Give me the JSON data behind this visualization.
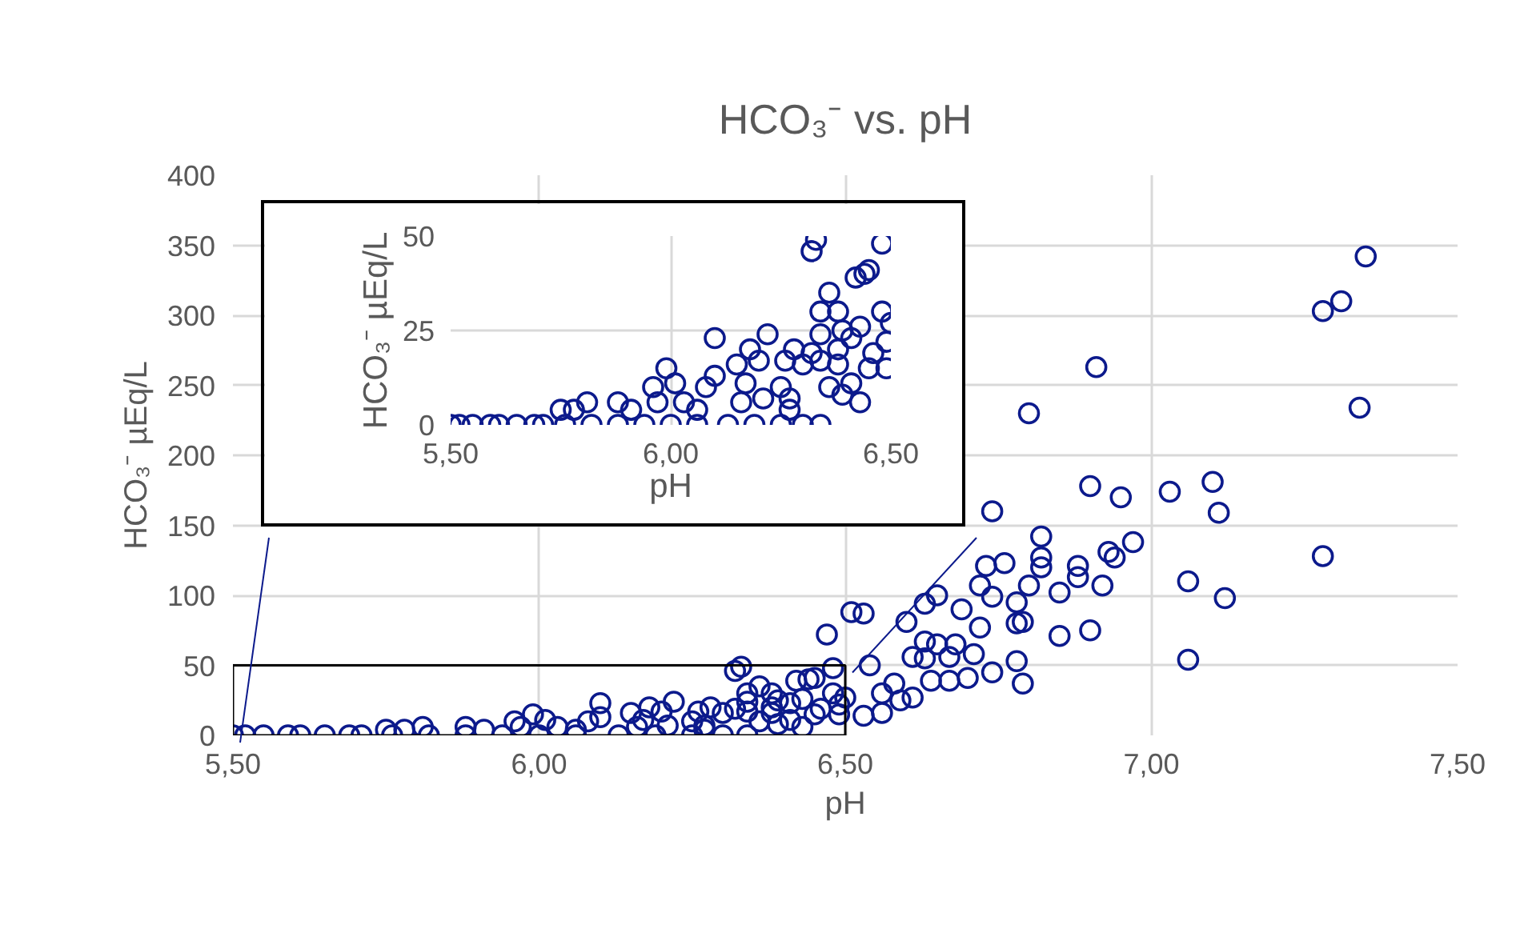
{
  "chart_data": [
    {
      "type": "scatter",
      "title": "HCO₃⁻ vs. pH",
      "xlabel": "pH",
      "ylabel": "HCO₃⁻ µEq/L",
      "marker": "circle",
      "grid": true,
      "xlim": [
        5.5,
        7.5
      ],
      "xticks": [
        {
          "value": 5.5,
          "label": "5,50"
        },
        {
          "value": 6.0,
          "label": "6,00"
        },
        {
          "value": 6.5,
          "label": "6,50"
        },
        {
          "value": 7.0,
          "label": "7,00"
        },
        {
          "value": 7.5,
          "label": "7,50"
        }
      ],
      "ylim": [
        0,
        400
      ],
      "yticks": [
        0,
        50,
        100,
        150,
        200,
        250,
        300,
        350,
        400
      ],
      "series": [
        {
          "color": "#0c1a8c",
          "x": [
            6.33,
            6.32,
            6.48,
            6.42,
            6.44,
            6.45,
            6.36,
            6.34,
            6.38,
            6.48,
            6.5,
            6.43,
            6.39,
            6.34,
            6.41,
            6.49,
            6.46,
            6.38,
            6.32,
            6.34,
            6.38,
            6.49,
            6.45,
            6.43,
            6.39,
            6.36,
            6.41,
            6.34,
            6.22,
            6.1,
            6.18,
            6.2,
            6.26,
            6.28,
            6.3,
            6.15,
            5.99,
            6.1,
            6.17,
            6.27,
            6.25,
            6.08,
            6.01,
            5.96,
            5.97,
            5.88,
            5.81,
            5.75,
            5.78,
            5.91,
            6.03,
            6.06,
            6.16,
            6.21,
            6.27,
            5.5,
            5.52,
            5.55,
            5.59,
            5.61,
            5.65,
            5.69,
            5.71,
            5.76,
            5.82,
            5.88,
            5.94,
            6.0,
            6.06,
            6.13,
            6.19,
            6.25,
            6.3,
            7.35,
            7.31,
            7.28,
            6.91,
            6.8,
            7.34,
            6.9,
            6.95,
            7.03,
            7.1,
            7.11,
            6.74,
            7.28,
            6.97,
            6.82,
            7.06,
            7.12,
            7.06,
            6.9,
            6.85,
            6.93,
            6.94,
            6.88,
            6.88,
            6.92,
            6.85,
            6.82,
            6.82,
            6.8,
            6.76,
            6.73,
            6.72,
            6.74,
            6.78,
            6.78,
            6.79,
            6.65,
            6.63,
            6.6,
            6.69,
            6.72,
            6.68,
            6.65,
            6.63,
            6.61,
            6.63,
            6.67,
            6.71,
            6.78,
            6.79,
            6.74,
            6.7,
            6.67,
            6.64,
            6.61,
            6.59,
            6.56,
            6.56,
            6.53,
            6.51,
            6.53,
            6.47,
            6.54,
            6.58
          ],
          "values": [
            49,
            46,
            48,
            39,
            40,
            41,
            35,
            30,
            30,
            30,
            27,
            26,
            25,
            24,
            23,
            22,
            19,
            20,
            19,
            17,
            16,
            15,
            15,
            6,
            8,
            10,
            11,
            0,
            24,
            23,
            20,
            17,
            17,
            20,
            16,
            16,
            15,
            13,
            11,
            7,
            10,
            10,
            11,
            10,
            6,
            6,
            6,
            4,
            4,
            4,
            6,
            4,
            6,
            7,
            4,
            0,
            0,
            0,
            0,
            0,
            0,
            0,
            0,
            0,
            0,
            0,
            0,
            0,
            0,
            0,
            0,
            0,
            0,
            342,
            310,
            303,
            263,
            230,
            234,
            178,
            170,
            174,
            181,
            159,
            160,
            128,
            138,
            142,
            110,
            98,
            54,
            75,
            71,
            131,
            127,
            121,
            113,
            107,
            102,
            127,
            120,
            107,
            123,
            121,
            107,
            99,
            95,
            80,
            81,
            100,
            94,
            81,
            90,
            77,
            65,
            65,
            67,
            56,
            55,
            56,
            58,
            53,
            37,
            45,
            41,
            39,
            39,
            27,
            25,
            30,
            16,
            14,
            88,
            87,
            72,
            50,
            37
          ]
        }
      ]
    },
    {
      "type": "scatter",
      "xlabel": "pH",
      "ylabel": "HCO₃⁻ µEq/L",
      "marker": "circle",
      "grid": true,
      "xlim": [
        5.5,
        6.5
      ],
      "xticks": [
        {
          "value": 5.5,
          "label": "5,50"
        },
        {
          "value": 6.0,
          "label": "6,00"
        },
        {
          "value": 6.5,
          "label": "6,50"
        }
      ],
      "ylim": [
        0,
        50
      ],
      "yticks": [
        0,
        25,
        50
      ],
      "series": [
        {
          "color": "#0c1a8c",
          "x": [
            6.33,
            6.32,
            6.48,
            6.42,
            6.44,
            6.45,
            6.36,
            6.34,
            6.38,
            6.48,
            6.5,
            6.43,
            6.39,
            6.34,
            6.41,
            6.49,
            6.46,
            6.38,
            6.32,
            6.34,
            6.38,
            6.49,
            6.45,
            6.43,
            6.39,
            6.36,
            6.41,
            6.34,
            6.22,
            6.1,
            6.18,
            6.2,
            6.26,
            6.28,
            6.3,
            6.15,
            5.99,
            6.1,
            6.17,
            6.27,
            6.25,
            6.08,
            6.01,
            5.96,
            5.97,
            5.88,
            5.81,
            5.75,
            5.78,
            5.91,
            6.03,
            6.06,
            6.16,
            6.21,
            6.27,
            5.5,
            5.52,
            5.55,
            5.59,
            5.61,
            5.65,
            5.69,
            5.71,
            5.76,
            5.82,
            5.88,
            5.94,
            6.0,
            6.06,
            6.13,
            6.19,
            6.25,
            6.3
          ],
          "values": [
            49,
            46,
            48,
            39,
            40,
            41,
            35,
            30,
            30,
            30,
            27,
            26,
            25,
            24,
            23,
            22,
            19,
            20,
            19,
            17,
            16,
            15,
            15,
            6,
            8,
            10,
            11,
            0,
            24,
            23,
            20,
            17,
            17,
            20,
            16,
            16,
            15,
            13,
            11,
            7,
            10,
            10,
            11,
            10,
            6,
            6,
            6,
            4,
            4,
            4,
            6,
            4,
            6,
            7,
            4,
            0,
            0,
            0,
            0,
            0,
            0,
            0,
            0,
            0,
            0,
            0,
            0,
            0,
            0,
            0,
            0,
            0,
            0
          ]
        }
      ]
    }
  ]
}
